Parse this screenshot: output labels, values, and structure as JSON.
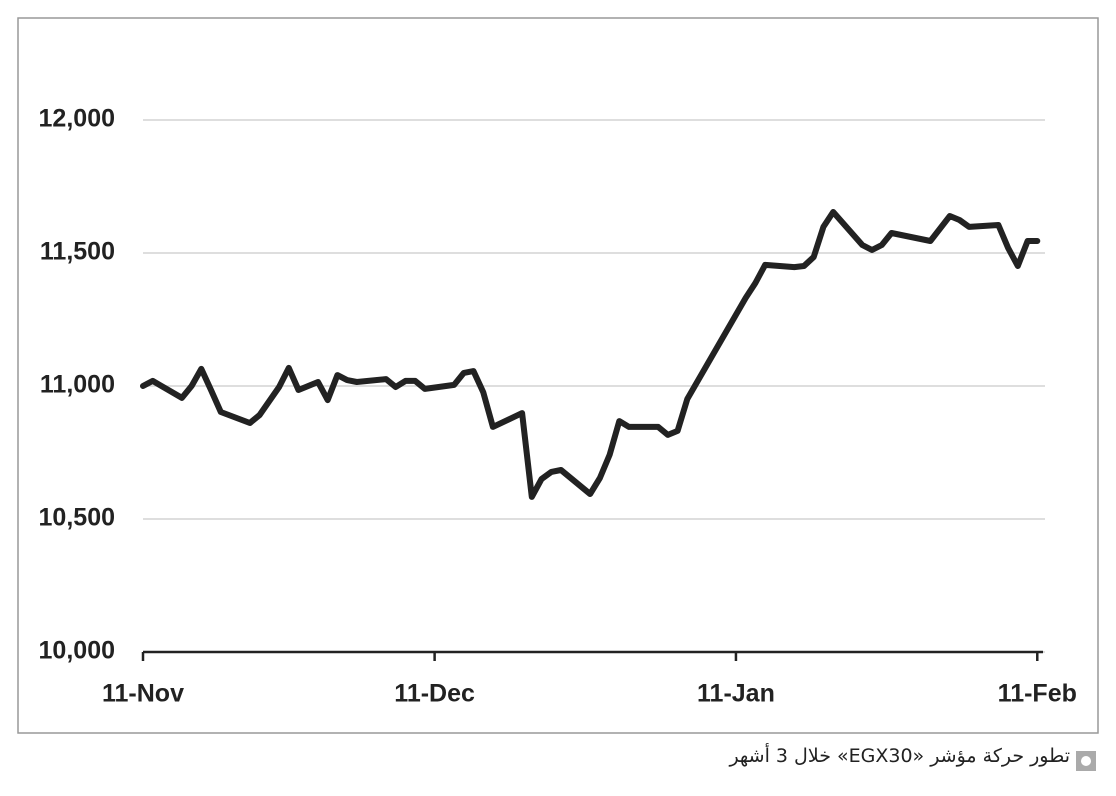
{
  "chart_data": {
    "type": "line",
    "caption": "تطور حركة مؤشر «EGX30» خلال 3 أشهر",
    "x": [
      0,
      1,
      4,
      5,
      6,
      7,
      8,
      11,
      12,
      14,
      15,
      16,
      18,
      19,
      20,
      21,
      22,
      25,
      26,
      27,
      28,
      29,
      32,
      33,
      34,
      35,
      36,
      39,
      40,
      41,
      42,
      43,
      46,
      47,
      48,
      49,
      50,
      53,
      54,
      55,
      56,
      62,
      63,
      64,
      67,
      68,
      69,
      70,
      71,
      74,
      75,
      76,
      77,
      81,
      83,
      84,
      85,
      88,
      89,
      90,
      91,
      92
    ],
    "values": [
      11000,
      11019,
      10955,
      11000,
      11064,
      10985,
      10902,
      10861,
      10891,
      10996,
      11068,
      10985,
      11015,
      10947,
      11041,
      11022,
      11015,
      11026,
      10996,
      11019,
      11019,
      10989,
      11004,
      11049,
      11056,
      10977,
      10846,
      10898,
      10583,
      10650,
      10677,
      10684,
      10594,
      10654,
      10741,
      10868,
      10846,
      10846,
      10816,
      10831,
      10951,
      11331,
      11387,
      11455,
      11447,
      11451,
      11485,
      11598,
      11654,
      11530,
      11511,
      11530,
      11575,
      11545,
      11639,
      11624,
      11598,
      11605,
      11519,
      11451,
      11545,
      11545
    ],
    "color": "#222222",
    "xlim": [
      0,
      93
    ],
    "xticks": [
      {
        "value": 0,
        "label": "11-Nov"
      },
      {
        "value": 30,
        "label": "11-Dec"
      },
      {
        "value": 61,
        "label": "11-Jan"
      },
      {
        "value": 92,
        "label": "11-Feb"
      }
    ],
    "ylim": [
      10000,
      12340
    ],
    "yticks": [
      {
        "value": 10000,
        "label": "10,000"
      },
      {
        "value": 10500,
        "label": "10,500"
      },
      {
        "value": 11000,
        "label": "11,000"
      },
      {
        "value": 11500,
        "label": "11,500"
      },
      {
        "value": 12000,
        "label": "12,000"
      }
    ],
    "grid": true
  }
}
